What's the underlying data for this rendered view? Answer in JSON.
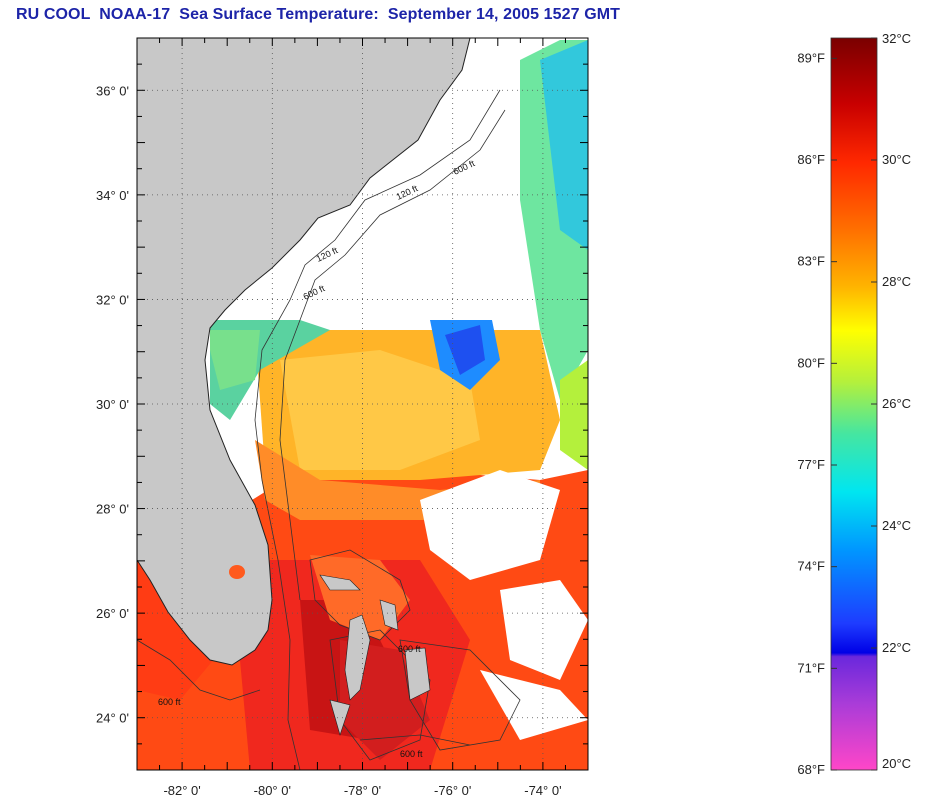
{
  "title": "RU COOL  NOAA-17  Sea Surface Temperature:  September 14, 2005 1527 GMT",
  "map": {
    "lon_range": [
      -83.0,
      -73.0
    ],
    "lat_range": [
      23.0,
      37.0
    ],
    "x_ticks": [
      {
        "value": -82,
        "label": "-82° 0'"
      },
      {
        "value": -80,
        "label": "-80° 0'"
      },
      {
        "value": -78,
        "label": "-78° 0'"
      },
      {
        "value": -76,
        "label": "-76° 0'"
      },
      {
        "value": -74,
        "label": "-74° 0'"
      }
    ],
    "y_ticks": [
      {
        "value": 36,
        "label": "36° 0'"
      },
      {
        "value": 34,
        "label": "34° 0'"
      },
      {
        "value": 32,
        "label": "32° 0'"
      },
      {
        "value": 30,
        "label": "30° 0'"
      },
      {
        "value": 28,
        "label": "28° 0'"
      },
      {
        "value": 26,
        "label": "26° 0'"
      },
      {
        "value": 24,
        "label": "24° 0'"
      }
    ],
    "grid": true,
    "contour_labels": [
      "120 ft",
      "600 ft",
      "120 ft",
      "600 ft",
      "600 ft",
      "600 ft",
      "600 ft"
    ],
    "colors": {
      "land": "#c8c8c8",
      "cloud": "#ffffff",
      "frame": "#000000"
    }
  },
  "colorbar": {
    "celsius_range": [
      20,
      32
    ],
    "fahrenheit_range": [
      68,
      89.6
    ],
    "celsius_labels": [
      "32°C",
      "30°C",
      "28°C",
      "26°C",
      "24°C",
      "22°C",
      "20°C"
    ],
    "fahrenheit_labels": [
      "89°F",
      "86°F",
      "83°F",
      "80°F",
      "77°F",
      "74°F",
      "71°F",
      "68°F"
    ],
    "celsius_values": [
      32,
      30,
      28,
      26,
      24,
      22,
      20
    ],
    "fahrenheit_values": [
      89,
      86,
      83,
      80,
      77,
      74,
      71,
      68
    ],
    "gradient": [
      "#7a0000",
      "#d40000",
      "#ff3c00",
      "#ff8a00",
      "#ffd200",
      "#ffff00",
      "#b4f03c",
      "#46e6a0",
      "#00e6f0",
      "#0096ff",
      "#1e3cff",
      "#0000e6",
      "#8a32d2",
      "#ff46c8"
    ]
  }
}
